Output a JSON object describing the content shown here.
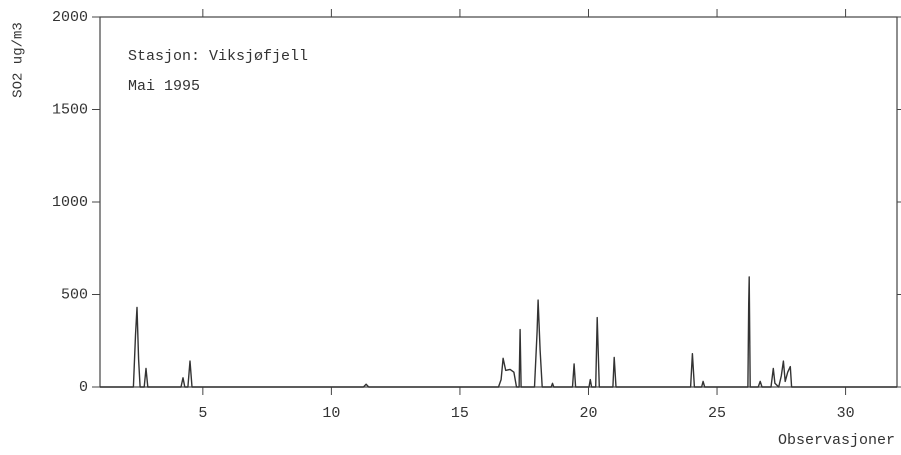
{
  "chart_data": {
    "type": "line",
    "annotations": [
      "Stasjon: Viksjøfjell",
      "Mai 1995"
    ],
    "y_label": "SO2 ug/m3",
    "x_label": "Observasjoner",
    "color": "#333333",
    "xlim": [
      1,
      32
    ],
    "xticks": [
      5,
      10,
      15,
      20,
      25,
      30
    ],
    "ylim": [
      0,
      2000
    ],
    "yticks": [
      0,
      500,
      1000,
      1500,
      2000
    ],
    "x": [
      1,
      2.3,
      2.38,
      2.44,
      2.5,
      2.56,
      2.72,
      2.79,
      2.86,
      4.15,
      4.23,
      4.3,
      4.42,
      4.5,
      4.58,
      11.25,
      11.35,
      11.45,
      16.5,
      16.6,
      16.68,
      16.78,
      16.95,
      17.1,
      17.2,
      17.3,
      17.34,
      17.38,
      17.9,
      18.0,
      18.04,
      18.12,
      18.2,
      18.55,
      18.6,
      18.65,
      19.38,
      19.44,
      19.5,
      20.02,
      20.07,
      20.12,
      20.28,
      20.34,
      20.42,
      20.95,
      21.0,
      21.07,
      23.97,
      24.04,
      24.12,
      24.4,
      24.46,
      24.52,
      26.2,
      26.23,
      26.25,
      26.29,
      26.6,
      26.68,
      26.75,
      27.1,
      27.19,
      27.25,
      27.4,
      27.5,
      27.58,
      27.65,
      27.75,
      27.85,
      27.9,
      32
    ],
    "values": [
      0,
      0,
      280,
      430,
      150,
      0,
      0,
      100,
      0,
      0,
      50,
      0,
      0,
      140,
      0,
      0,
      15,
      0,
      0,
      40,
      155,
      90,
      95,
      80,
      0,
      0,
      310,
      0,
      0,
      300,
      470,
      200,
      0,
      0,
      20,
      0,
      0,
      125,
      0,
      0,
      40,
      0,
      0,
      375,
      0,
      0,
      160,
      0,
      0,
      180,
      0,
      0,
      30,
      0,
      0,
      450,
      595,
      0,
      0,
      30,
      0,
      0,
      100,
      20,
      0,
      60,
      140,
      30,
      80,
      110,
      0,
      0
    ]
  }
}
